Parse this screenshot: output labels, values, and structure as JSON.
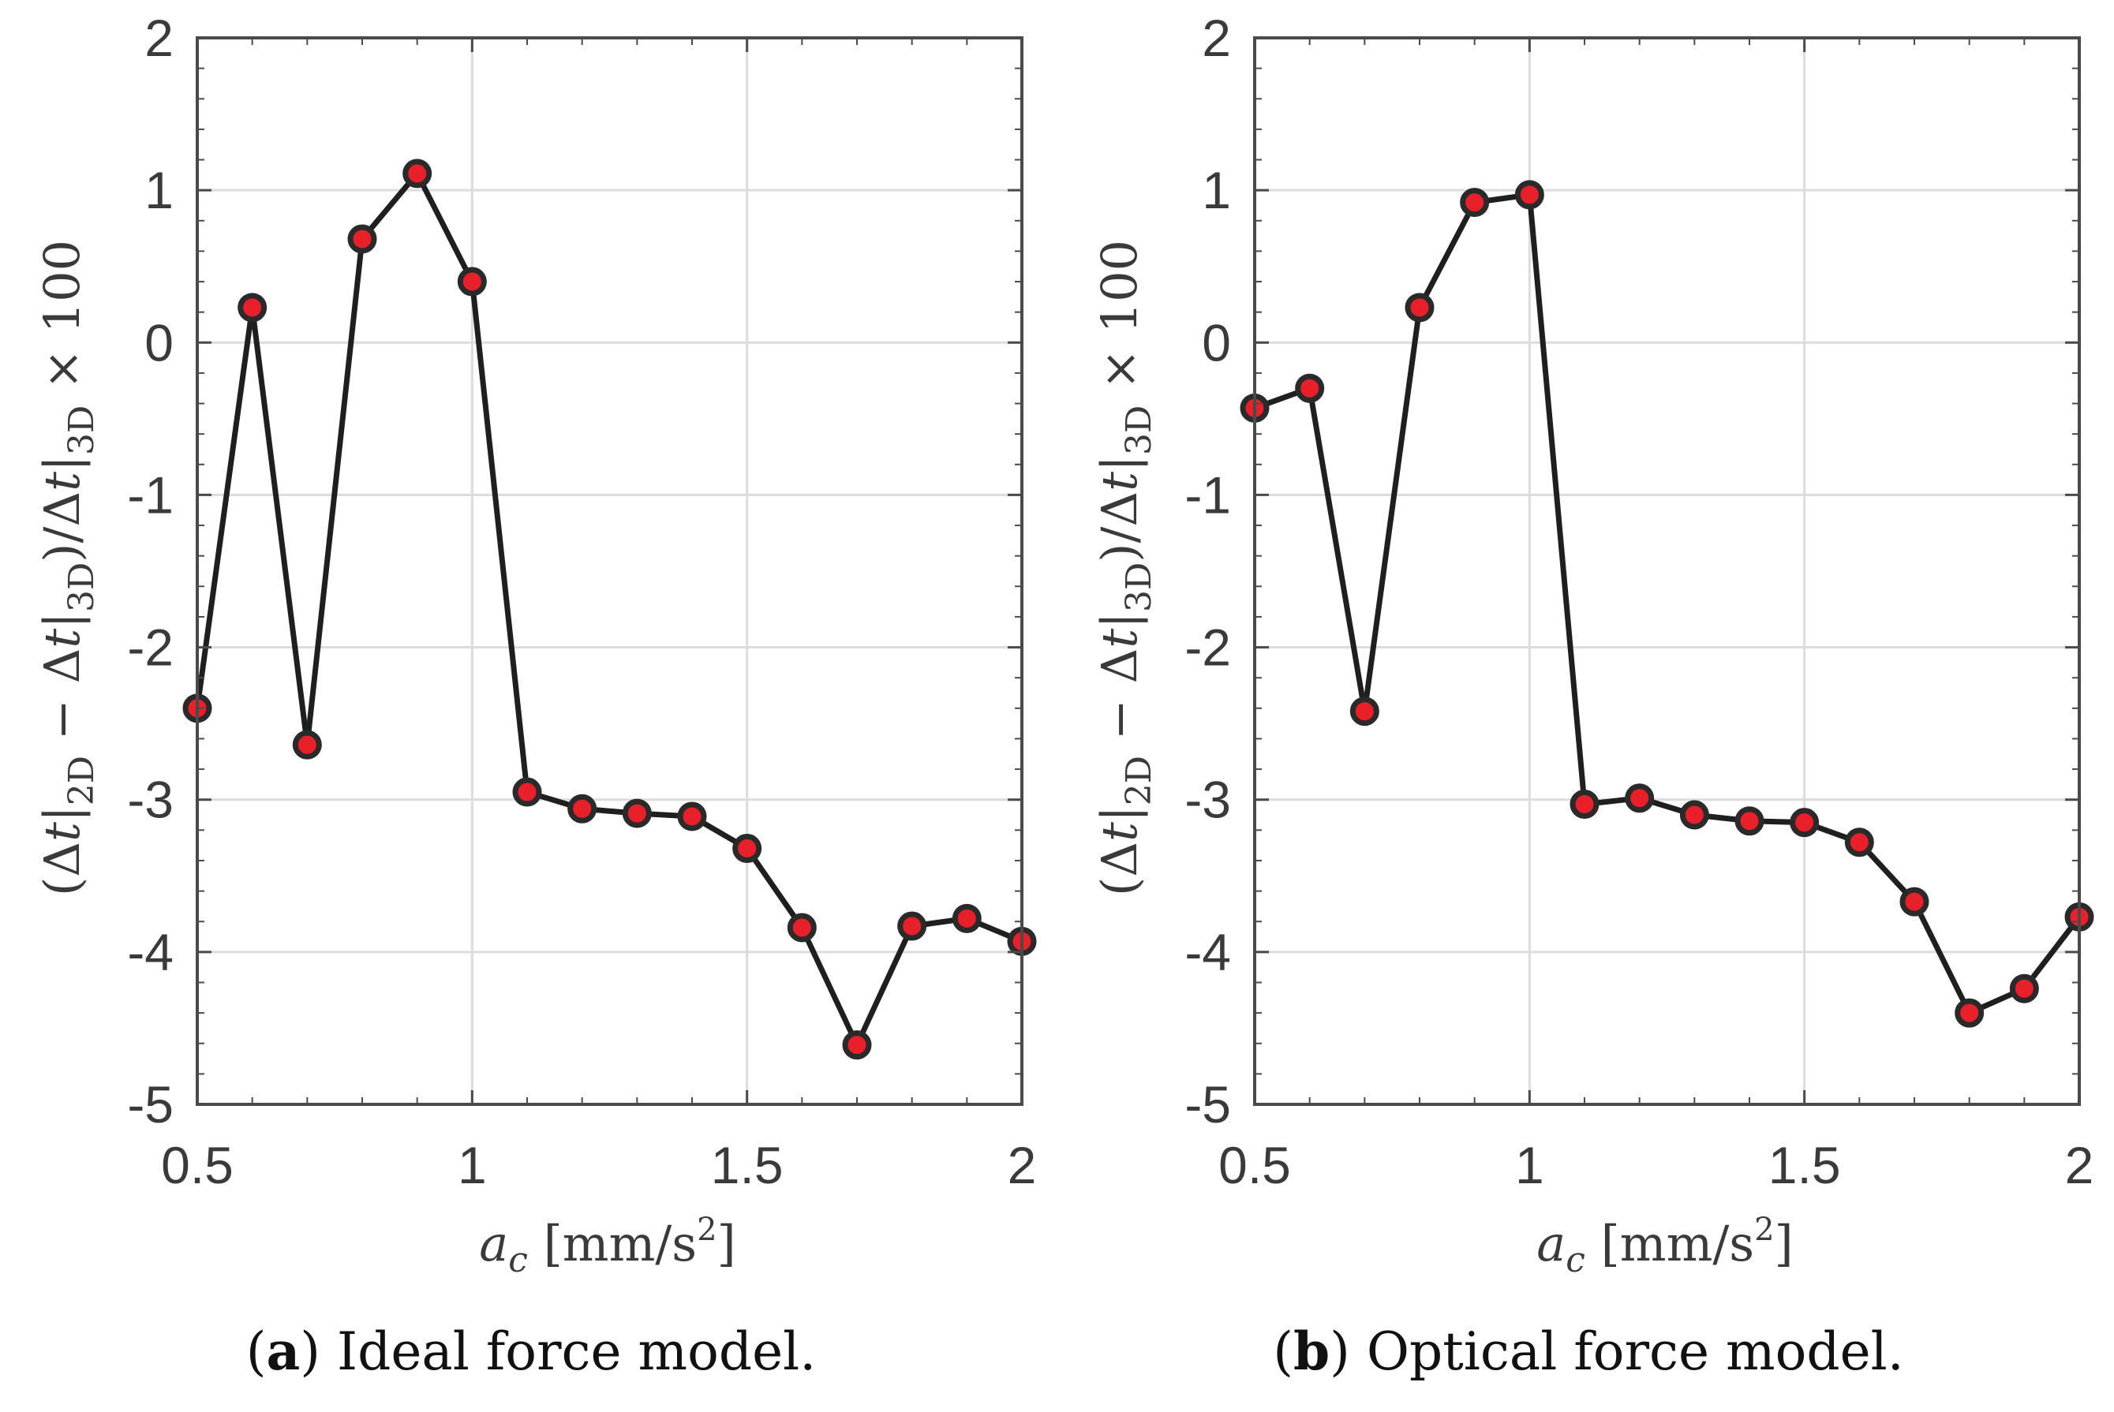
{
  "chart_data": [
    {
      "type": "line",
      "title": "",
      "xlabel": "a_c [mm/s^2]",
      "ylabel": "(Δt|2D − Δt|3D)/Δt|3D × 100",
      "xlim": [
        0.5,
        2
      ],
      "ylim": [
        -5,
        2
      ],
      "xticks": [
        "0.5",
        "1",
        "1.5",
        "2"
      ],
      "yticks": [
        "2",
        "1",
        "0",
        "-1",
        "-2",
        "-3",
        "-4",
        "-5"
      ],
      "grid": true,
      "caption_letter": "a",
      "caption_text": "Ideal force model.",
      "x": [
        0.5,
        0.6,
        0.7,
        0.8,
        0.9,
        1.0,
        1.1,
        1.2,
        1.3,
        1.4,
        1.5,
        1.6,
        1.7,
        1.8,
        1.9,
        2.0
      ],
      "series": [
        {
          "values": [
            -2.4,
            0.23,
            -2.64,
            0.68,
            1.11,
            0.4,
            -2.95,
            -3.06,
            -3.09,
            -3.11,
            -3.32,
            -3.84,
            -4.61,
            -3.83,
            -3.78,
            -3.93
          ]
        }
      ]
    },
    {
      "type": "line",
      "title": "",
      "xlabel": "a_c [mm/s^2]",
      "ylabel": "(Δt|2D − Δt|3D)/Δt|3D × 100",
      "xlim": [
        0.5,
        2
      ],
      "ylim": [
        -5,
        2
      ],
      "xticks": [
        "0.5",
        "1",
        "1.5",
        "2"
      ],
      "yticks": [
        "2",
        "1",
        "0",
        "-1",
        "-2",
        "-3",
        "-4",
        "-5"
      ],
      "grid": true,
      "caption_letter": "b",
      "caption_text": "Optical force model.",
      "x": [
        0.5,
        0.6,
        0.7,
        0.8,
        0.9,
        1.0,
        1.1,
        1.2,
        1.3,
        1.4,
        1.5,
        1.6,
        1.7,
        1.8,
        1.9,
        2.0
      ],
      "series": [
        {
          "values": [
            -0.43,
            -0.3,
            -2.42,
            0.23,
            0.92,
            0.97,
            -3.03,
            -2.99,
            -3.1,
            -3.14,
            -3.15,
            -3.28,
            -3.67,
            -4.4,
            -4.24,
            -3.77
          ]
        }
      ]
    }
  ],
  "colors": {
    "marker_fill": "#e8202a",
    "marker_edge": "#2a2a2a",
    "line": "#1f1f1f",
    "grid": "#dcdcdc",
    "axis": "#4a4a4a"
  }
}
